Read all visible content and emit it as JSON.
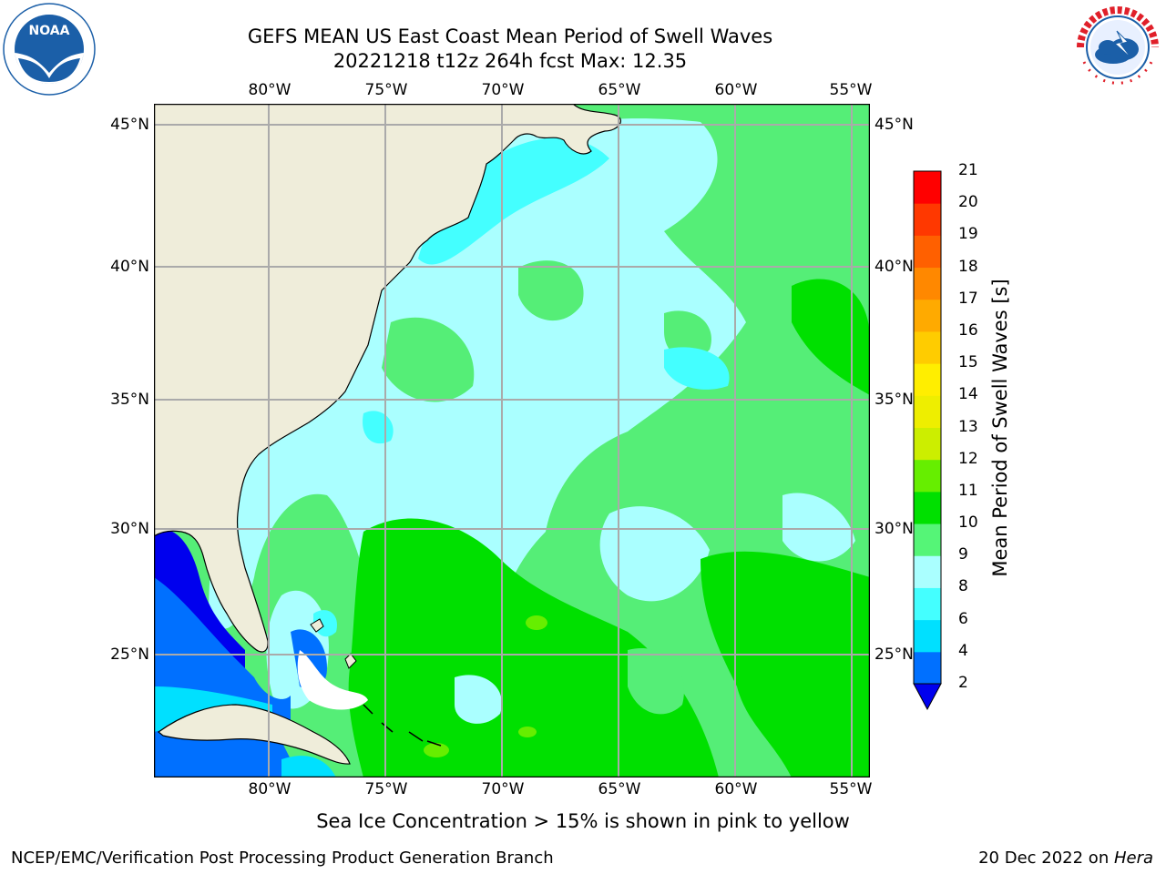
{
  "header": {
    "title_line1": "GEFS MEAN US East Coast Mean Period of Swell Waves",
    "title_line2": "20221218 t12z 264h fcst   Max: 12.35"
  },
  "logos": {
    "noaa": {
      "icon": "noaa-logo",
      "text": "NOAA",
      "ring_text": "NATIONAL OCEANIC AND ATMOSPHERIC ADMINISTRATION · U.S. DEPARTMENT OF COMMERCE",
      "color": "#1b5fa8"
    },
    "nws": {
      "icon": "nws-logo",
      "ring_text": "NATIONAL WEATHER SERVICE",
      "color": "#e0202a"
    }
  },
  "map": {
    "lon_labels": [
      "80°W",
      "75°W",
      "70°W",
      "65°W",
      "60°W",
      "55°W"
    ],
    "lat_labels": [
      "45°N",
      "40°N",
      "35°N",
      "30°N",
      "25°N"
    ],
    "land_color": "#efedda",
    "ocean_dominant_color": "#55ee77"
  },
  "colorbar": {
    "title": "Mean Period of Swell Waves [s]",
    "labels": [
      "2",
      "4",
      "6",
      "8",
      "9",
      "10",
      "11",
      "12",
      "13",
      "14",
      "15",
      "16",
      "17",
      "18",
      "19",
      "20",
      "21"
    ],
    "colors": [
      "#0070ff",
      "#00e0ff",
      "#44ffff",
      "#aaffff",
      "#55f577",
      "#00e000",
      "#66ee00",
      "#ccee00",
      "#eeee00",
      "#ffee00",
      "#ffcc00",
      "#ffaa00",
      "#ff8800",
      "#ff6000",
      "#ff3800",
      "#ff0000"
    ],
    "under_color": "#0000ee"
  },
  "caption": "Sea Ice Concentration > 15% is shown in pink to yellow",
  "footer": {
    "left": "NCEP/EMC/Verification Post Processing Product Generation Branch",
    "date": "20 Dec 2022 on ",
    "machine": "Hera"
  }
}
